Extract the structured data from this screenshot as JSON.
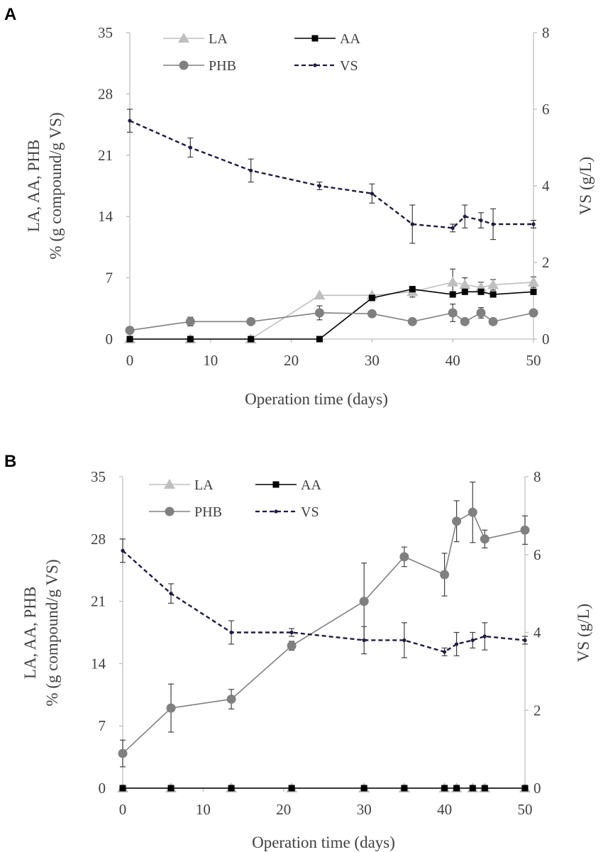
{
  "chart_data": [
    {
      "panel": "A",
      "type": "line",
      "xlabel": "Operation time (days)",
      "ylabel_left_line1": "LA, AA, PHB",
      "ylabel_left_line2": "% (g compound/g VS)",
      "ylabel_right": "VS (g/L)",
      "xlim": [
        0,
        50
      ],
      "ylim_left": [
        0,
        35
      ],
      "ylim_right": [
        0,
        8
      ],
      "xticks": [
        "0",
        "10",
        "20",
        "30",
        "40",
        "50"
      ],
      "yticks_left": [
        "0",
        "7",
        "14",
        "21",
        "28",
        "35"
      ],
      "yticks_right": [
        "0",
        "2",
        "4",
        "6",
        "8"
      ],
      "legend": [
        "LA",
        "AA",
        "PHB",
        "VS"
      ],
      "series": [
        {
          "name": "LA",
          "axis": "left",
          "color": "#bfbfbf",
          "marker": "triangle",
          "dash": "solid",
          "x": [
            0,
            7.5,
            15,
            23.5,
            30,
            35,
            40,
            41.5,
            43.5,
            45,
            50
          ],
          "y": [
            0,
            0,
            0,
            5,
            5,
            5.4,
            6.5,
            6.2,
            5.9,
            6.2,
            6.5
          ],
          "err": [
            0,
            0,
            0,
            0,
            0,
            0.6,
            1.5,
            0.8,
            0.6,
            0.6,
            0.6
          ]
        },
        {
          "name": "AA",
          "axis": "left",
          "color": "#000000",
          "marker": "square",
          "dash": "solid",
          "x": [
            0,
            7.5,
            15,
            23.5,
            30,
            35,
            40,
            41.5,
            43.5,
            45,
            50
          ],
          "y": [
            0,
            0,
            0,
            0,
            4.7,
            5.7,
            5.1,
            5.4,
            5.4,
            5.1,
            5.4
          ],
          "err": [
            0,
            0,
            0,
            0,
            0,
            0,
            0,
            0,
            0,
            0,
            0
          ]
        },
        {
          "name": "PHB",
          "axis": "left",
          "color": "#808080",
          "marker": "circle",
          "dash": "solid",
          "x": [
            0,
            7.5,
            15,
            23.5,
            30,
            35,
            40,
            41.5,
            43.5,
            45,
            50
          ],
          "y": [
            1,
            2,
            2,
            3,
            2.9,
            2,
            3,
            2,
            3,
            2,
            3
          ],
          "err": [
            0,
            0.5,
            0,
            0.8,
            0,
            0,
            1,
            0,
            0.6,
            0,
            0
          ]
        },
        {
          "name": "VS",
          "axis": "right",
          "color": "#1f1a3f",
          "marker": "dot",
          "dash": "dashed",
          "x": [
            0,
            7.5,
            15,
            23.5,
            30,
            35,
            40,
            41.5,
            43.5,
            45,
            50
          ],
          "y": [
            5.7,
            5.0,
            4.4,
            4.0,
            3.8,
            3.0,
            2.9,
            3.2,
            3.1,
            3.0,
            3.0
          ],
          "err": [
            0.3,
            0.25,
            0.3,
            0.1,
            0.25,
            0.5,
            0.1,
            0.3,
            0.2,
            0.4,
            0.1
          ]
        }
      ]
    },
    {
      "panel": "B",
      "type": "line",
      "xlabel": "Operation time (days)",
      "ylabel_left_line1": "LA, AA, PHB",
      "ylabel_left_line2": "% (g compound/g VS)",
      "ylabel_right": "VS (g/L)",
      "xlim": [
        0,
        50
      ],
      "ylim_left": [
        0,
        35
      ],
      "ylim_right": [
        0,
        8
      ],
      "xticks": [
        "0",
        "10",
        "20",
        "30",
        "40",
        "50"
      ],
      "yticks_left": [
        "0",
        "7",
        "14",
        "21",
        "28",
        "35"
      ],
      "yticks_right": [
        "0",
        "2",
        "4",
        "6",
        "8"
      ],
      "legend": [
        "LA",
        "AA",
        "PHB",
        "VS"
      ],
      "series": [
        {
          "name": "LA",
          "axis": "left",
          "color": "#bfbfbf",
          "marker": "triangle",
          "dash": "solid",
          "x": [
            0,
            6,
            13.5,
            21,
            30,
            35,
            40,
            41.5,
            43.5,
            45,
            50
          ],
          "y": [
            0,
            0,
            0,
            0,
            0,
            0,
            0,
            0,
            0,
            0,
            0
          ],
          "err": [
            0,
            0,
            0,
            0,
            0,
            0,
            0,
            0,
            0,
            0,
            0
          ]
        },
        {
          "name": "AA",
          "axis": "left",
          "color": "#000000",
          "marker": "square",
          "dash": "solid",
          "x": [
            0,
            6,
            13.5,
            21,
            30,
            35,
            40,
            41.5,
            43.5,
            45,
            50
          ],
          "y": [
            0,
            0,
            0,
            0,
            0,
            0,
            0,
            0,
            0,
            0,
            0
          ],
          "err": [
            0,
            0,
            0,
            0,
            0,
            0,
            0,
            0,
            0,
            0,
            0
          ]
        },
        {
          "name": "PHB",
          "axis": "left",
          "color": "#808080",
          "marker": "circle",
          "dash": "solid",
          "x": [
            0,
            6,
            13.5,
            21,
            30,
            35,
            40,
            41.5,
            43.5,
            45,
            50
          ],
          "y": [
            3.9,
            9.0,
            10.0,
            16.0,
            21.0,
            26.0,
            24.0,
            30.0,
            31.0,
            28.0,
            29.0
          ],
          "err": [
            1.5,
            2.7,
            1.1,
            0.5,
            4.3,
            1.1,
            2.4,
            2.3,
            3.4,
            1.0,
            1.6
          ]
        },
        {
          "name": "VS",
          "axis": "right",
          "color": "#1f1a3f",
          "marker": "dot",
          "dash": "dashed",
          "x": [
            0,
            6,
            13.5,
            21,
            30,
            35,
            40,
            41.5,
            43.5,
            45,
            50
          ],
          "y": [
            6.1,
            5.0,
            4.0,
            4.0,
            3.8,
            3.8,
            3.5,
            3.7,
            3.8,
            3.9,
            3.8
          ],
          "err": [
            0.3,
            0.25,
            0.3,
            0.1,
            0.35,
            0.45,
            0.1,
            0.3,
            0.2,
            0.35,
            0.1
          ]
        }
      ]
    }
  ]
}
